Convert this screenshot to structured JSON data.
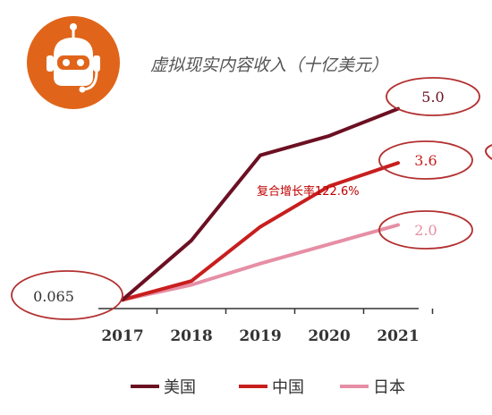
{
  "title": "虚拟现实内容收入（十亿美元）",
  "icon": "robot-head-icon",
  "colors": {
    "usa": "#6b1022",
    "china": "#c81e1e",
    "japan": "#e68ea5",
    "icon_bg": "#e0651a",
    "ellipse": "#b33030"
  },
  "annotation": "复合增长率122.6%",
  "chart_data": {
    "type": "line",
    "categories": [
      "2017",
      "2018",
      "2019",
      "2020",
      "2021"
    ],
    "series": [
      {
        "name": "美国",
        "values": [
          0.065,
          1.6,
          3.8,
          4.3,
          5.0
        ]
      },
      {
        "name": "中国",
        "values": [
          0.065,
          0.55,
          1.95,
          3.0,
          3.6
        ]
      },
      {
        "name": "日本",
        "values": [
          0.065,
          0.45,
          1.0,
          1.5,
          2.0
        ]
      }
    ],
    "data_labels": [
      {
        "text": "0.065",
        "series": "美国",
        "index": 0
      },
      {
        "text": "5.0",
        "series": "美国",
        "index": 4
      },
      {
        "text": "3.6",
        "series": "中国",
        "index": 4
      },
      {
        "text": "2.0",
        "series": "日本",
        "index": 4
      }
    ],
    "ylim": [
      0,
      5.5
    ],
    "grid": false,
    "legend_position": "bottom"
  }
}
